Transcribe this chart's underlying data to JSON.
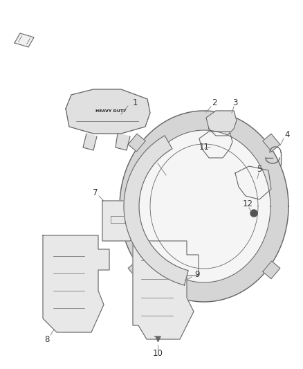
{
  "background_color": "#ffffff",
  "line_color": "#666666",
  "label_color": "#333333",
  "fill_color": "#e0e0e0",
  "fig_w": 4.38,
  "fig_h": 5.33,
  "dpi": 100
}
